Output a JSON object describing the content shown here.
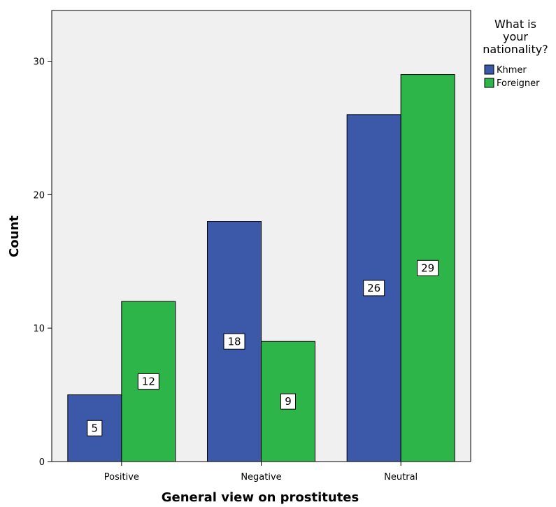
{
  "chart_data": {
    "type": "bar",
    "title": "",
    "xlabel": "General view on prostitutes",
    "ylabel": "Count",
    "categories": [
      "Positive",
      "Negative",
      "Neutral"
    ],
    "series": [
      {
        "name": "Khmer",
        "values": [
          5,
          18,
          26
        ],
        "color": "#3c58a8"
      },
      {
        "name": "Foreigner",
        "values": [
          12,
          9,
          29
        ],
        "color": "#2db54a"
      }
    ],
    "ylim": [
      0,
      33.8
    ],
    "yticks": [
      0,
      10,
      20,
      30
    ],
    "grid": false,
    "legend": {
      "title_lines": [
        "What is",
        "your",
        "nationality?"
      ],
      "position": "top-right, outside plot"
    },
    "plot_background": "#f0f0f0"
  }
}
